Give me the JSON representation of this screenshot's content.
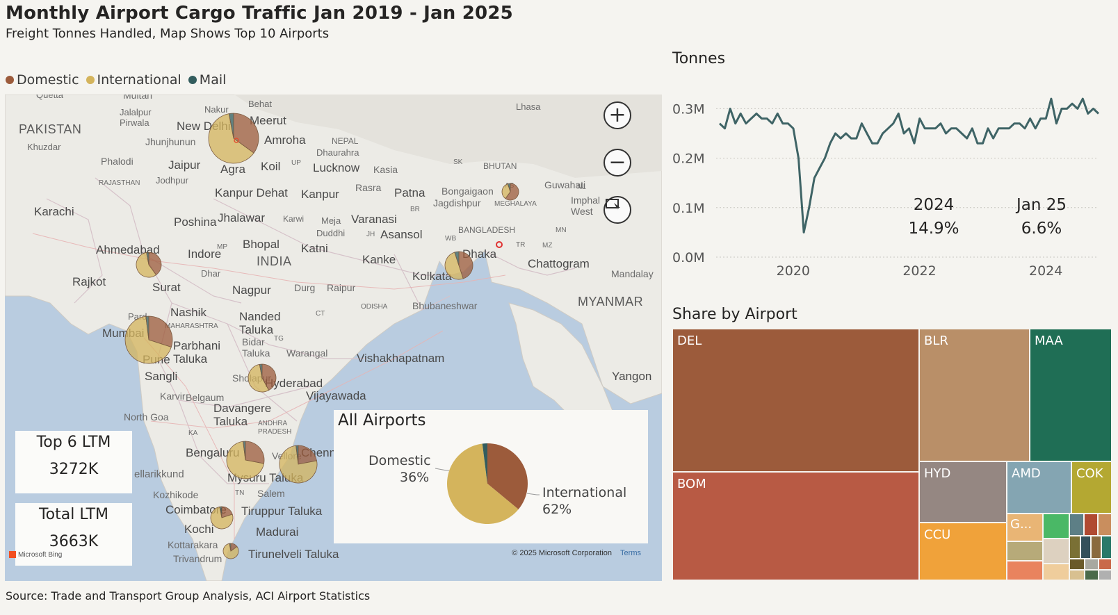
{
  "header": {
    "title": "Monthly Airport Cargo Traffic Jan 2019 - Jan 2025",
    "subtitle": "Freight Tonnes Handled, Map Shows Top 10 Airports"
  },
  "legend": {
    "items": [
      {
        "label": "Domestic",
        "color": "#9c5b3b"
      },
      {
        "label": "International",
        "color": "#d4b45c"
      },
      {
        "label": "Mail",
        "color": "#335d5e"
      }
    ]
  },
  "map": {
    "controls": {
      "zoom_in_icon": "plus-icon",
      "zoom_out_icon": "minus-icon",
      "select_icon": "select-rectangle-icon"
    },
    "labels": {
      "pakistan": "PAKISTAN",
      "khuzdar": "Khuzdar",
      "karachi": "Karachi",
      "quetta": "Quetta",
      "multan": "Multan",
      "jalalpur": "Jalalpur Pirwala",
      "phalodi": "Phalodi",
      "rajasthan": "RAJASTHAN",
      "jodhpur": "Jodhpur",
      "jhunjhunun": "Jhunjhunun",
      "jaipur": "Jaipur",
      "new_delhi": "New Delhi",
      "nakur": "Nakur",
      "behat": "Behat",
      "meerut": "Meerut",
      "amroha": "Amroha",
      "nepal": "NEPAL",
      "dhaurahra": "Dhaurahra",
      "lhasa": "Lhasa",
      "agra": "Agra",
      "koil": "Koil",
      "up": "UP",
      "lucknow": "Lucknow",
      "kasia": "Kasia",
      "bhutan": "BHUTAN",
      "sk": "SK",
      "guwahati": "Guwahati",
      "bongaigaon": "Bongaigaon",
      "as": "AS",
      "nl": "NL",
      "kanpur_dehat": "Kanpur Dehat",
      "kanpur": "Kanpur",
      "rasra": "Rasra",
      "patna": "Patna",
      "jagdishpur": "Jagdishpur",
      "meghalaya": "MEGHALAYA",
      "imphal": "Imphal West",
      "poshina": "Poshina",
      "jhalawar": "Jhalawar",
      "karwi": "Karwi",
      "meja": "Meja",
      "varanasi": "Varanasi",
      "br": "BR",
      "duddhi": "Duddhi",
      "jh": "JH",
      "asansol": "Asansol",
      "bangladesh": "BANGLADESH",
      "mn": "MN",
      "ahmedabad": "Ahmedabad",
      "indore": "Indore",
      "mp": "MP",
      "bhopal": "Bhopal",
      "katni": "Katni",
      "india": "INDIA",
      "kanke": "Kanke",
      "wb": "WB",
      "dhaka": "Dhaka",
      "tr": "TR",
      "mz": "MZ",
      "chattogram": "Chattogram",
      "rajkot": "Rajkot",
      "dhar": "Dhar",
      "surat": "Surat",
      "nagpur": "Nagpur",
      "durg": "Durg",
      "raipur": "Raipur",
      "kolkata": "Kolkata",
      "mandalay": "Mandalay",
      "myanmar": "MYANMAR",
      "odisha": "ODISHA",
      "bhubaneswar": "Bhubaneshwar",
      "nashik": "Nashik",
      "nanded": "Nanded Taluka",
      "maharashtra": "MAHARASHTRA",
      "ct": "CT",
      "mumbai": "Mumbai",
      "parbhani": "Parbhani Taluka",
      "bidar": "Bidar Taluka",
      "tg": "TG",
      "warangal": "Warangal",
      "vishakhapatnam": "Vishakhapatnam",
      "pune": "Pune",
      "sangli": "Sangli",
      "sholapur": "Sholapur",
      "hyderabad": "Hyderabad",
      "yangon": "Yangon",
      "karvir": "Karvir",
      "belgaum": "Belgaum",
      "vijayawada": "Vijayawada",
      "north_goa": "North Goa",
      "davangere": "Davangere Taluka",
      "andhra": "ANDHRA PRADESH",
      "ka": "KA",
      "bengaluru": "Bengaluru",
      "vellore": "Vellore",
      "chennai": "Chennai",
      "ellarikkund": "ellarikkund",
      "mysuru": "Mysuru Taluka",
      "kozhikode": "Kozhikode",
      "tn": "TN",
      "salem": "Salem",
      "coimbatore": "Coimbatore",
      "tiruppur": "Tiruppur Taluka",
      "kochi": "Kochi",
      "madurai": "Madurai",
      "kottarakara": "Kottarakara",
      "trivandrum": "Trivandrum",
      "tirunelveli": "Tirunelveli Taluka",
      "ra": "Pard"
    },
    "kpis": [
      {
        "label": "Top 6 LTM",
        "value": "3272K"
      },
      {
        "label": "Total LTM",
        "value": "3663K"
      }
    ],
    "copyright": "© 2025 Microsoft Corporation",
    "terms": "Terms",
    "bing": "Microsoft Bing",
    "all_airports": {
      "title": "All Airports",
      "domestic_label": "Domestic",
      "domestic_pct": "36%",
      "international_label": "International",
      "international_pct": "62%"
    }
  },
  "line_chart": {
    "title": "Tonnes",
    "annotations": [
      {
        "label": "2024",
        "value": "14.9%"
      },
      {
        "label": "Jan 25",
        "value": "6.6%"
      }
    ]
  },
  "treemap": {
    "title": "Share by Airport",
    "labels": {
      "del": "DEL",
      "blr": "BLR",
      "maa": "MAA",
      "bom": "BOM",
      "hyd": "HYD",
      "amd": "AMD",
      "cok": "COK",
      "ccu": "CCU",
      "goi": "G..."
    }
  },
  "source": "Source: Trade and Transport Group Analysis, ACI Airport Statistics",
  "chart_data": [
    {
      "type": "line",
      "title": "Tonnes",
      "x": [
        2019.0,
        2019.083,
        2019.167,
        2019.25,
        2019.333,
        2019.417,
        2019.5,
        2019.583,
        2019.667,
        2019.75,
        2019.833,
        2019.917,
        2020.0,
        2020.083,
        2020.167,
        2020.25,
        2020.333,
        2020.417,
        2020.5,
        2020.583,
        2020.667,
        2020.75,
        2020.833,
        2020.917,
        2021.0,
        2021.083,
        2021.167,
        2021.25,
        2021.333,
        2021.417,
        2021.5,
        2021.583,
        2021.667,
        2021.75,
        2021.833,
        2021.917,
        2022.0,
        2022.083,
        2022.167,
        2022.25,
        2022.333,
        2022.417,
        2022.5,
        2022.583,
        2022.667,
        2022.75,
        2022.833,
        2022.917,
        2023.0,
        2023.083,
        2023.167,
        2023.25,
        2023.333,
        2023.417,
        2023.5,
        2023.583,
        2023.667,
        2023.75,
        2023.833,
        2023.917,
        2024.0,
        2024.083,
        2024.167,
        2024.25,
        2024.333,
        2024.417,
        2024.5,
        2024.583,
        2024.667,
        2024.75,
        2024.833,
        2024.917,
        2025.0
      ],
      "series": [
        {
          "values": [
            0.27,
            0.26,
            0.3,
            0.27,
            0.29,
            0.27,
            0.28,
            0.29,
            0.28,
            0.28,
            0.27,
            0.29,
            0.27,
            0.27,
            0.26,
            0.2,
            0.05,
            0.1,
            0.16,
            0.18,
            0.2,
            0.23,
            0.25,
            0.24,
            0.25,
            0.24,
            0.24,
            0.27,
            0.25,
            0.23,
            0.23,
            0.25,
            0.26,
            0.27,
            0.29,
            0.25,
            0.26,
            0.23,
            0.28,
            0.26,
            0.26,
            0.26,
            0.27,
            0.25,
            0.26,
            0.26,
            0.25,
            0.24,
            0.26,
            0.23,
            0.23,
            0.26,
            0.24,
            0.26,
            0.26,
            0.26,
            0.27,
            0.27,
            0.26,
            0.28,
            0.26,
            0.28,
            0.28,
            0.32,
            0.27,
            0.3,
            0.3,
            0.31,
            0.3,
            0.32,
            0.29,
            0.3,
            0.29
          ]
        }
      ],
      "ylim": [
        0,
        0.33
      ],
      "yticks": [
        "0.0M",
        "0.1M",
        "0.2M",
        "0.3M"
      ],
      "xticks": [
        "2020",
        "2022",
        "2024"
      ],
      "color": "#3f6466",
      "grid": true
    },
    {
      "type": "pie",
      "title": "All Airports",
      "labels": [
        "Domestic",
        "International",
        "Mail"
      ],
      "values": [
        36,
        62,
        2
      ],
      "colors": [
        "#9c5b3b",
        "#d4b45c",
        "#335d5e"
      ]
    }
  ]
}
